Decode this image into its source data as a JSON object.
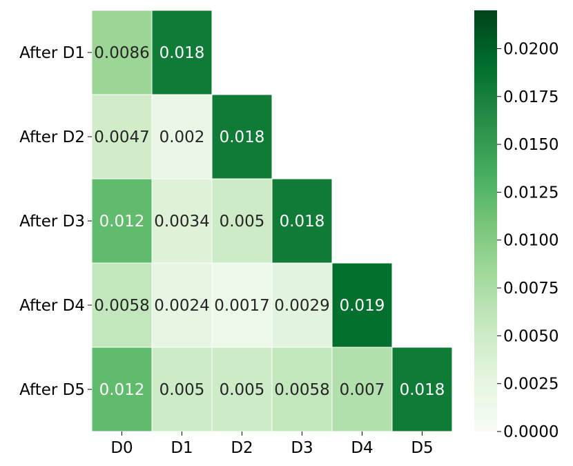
{
  "chart_data": {
    "type": "heatmap",
    "title": "",
    "xlabel": "",
    "ylabel": "",
    "x_categories": [
      "D0",
      "D1",
      "D2",
      "D3",
      "D4",
      "D5"
    ],
    "y_categories": [
      "After D1",
      "After D2",
      "After D3",
      "After D4",
      "After D5"
    ],
    "values": [
      [
        0.0086,
        0.018,
        null,
        null,
        null,
        null
      ],
      [
        0.0047,
        0.002,
        0.018,
        null,
        null,
        null
      ],
      [
        0.012,
        0.0034,
        0.005,
        0.018,
        null,
        null
      ],
      [
        0.0058,
        0.0024,
        0.0017,
        0.0029,
        0.019,
        null
      ],
      [
        0.012,
        0.005,
        0.005,
        0.0058,
        0.007,
        0.018
      ]
    ],
    "cell_labels": [
      [
        "0.0086",
        "0.018",
        "",
        "",
        "",
        ""
      ],
      [
        "0.0047",
        "0.002",
        "0.018",
        "",
        "",
        ""
      ],
      [
        "0.012",
        "0.0034",
        "0.005",
        "0.018",
        "",
        ""
      ],
      [
        "0.0058",
        "0.0024",
        "0.0017",
        "0.0029",
        "0.019",
        ""
      ],
      [
        "0.012",
        "0.005",
        "0.005",
        "0.0058",
        "0.007",
        "0.018"
      ]
    ],
    "colorbar": {
      "min": 0.0,
      "max": 0.022,
      "ticks": [
        0.0,
        0.0025,
        0.005,
        0.0075,
        0.01,
        0.0125,
        0.015,
        0.0175,
        0.02
      ],
      "tick_labels": [
        "0.0000",
        "0.0025",
        "0.0050",
        "0.0075",
        "0.0100",
        "0.0125",
        "0.0150",
        "0.0175",
        "0.0200"
      ],
      "colormap": "Greens",
      "low_color": "#f7fcf5",
      "high_color": "#00441b"
    },
    "grid": false,
    "legend": "colorbar-right"
  }
}
